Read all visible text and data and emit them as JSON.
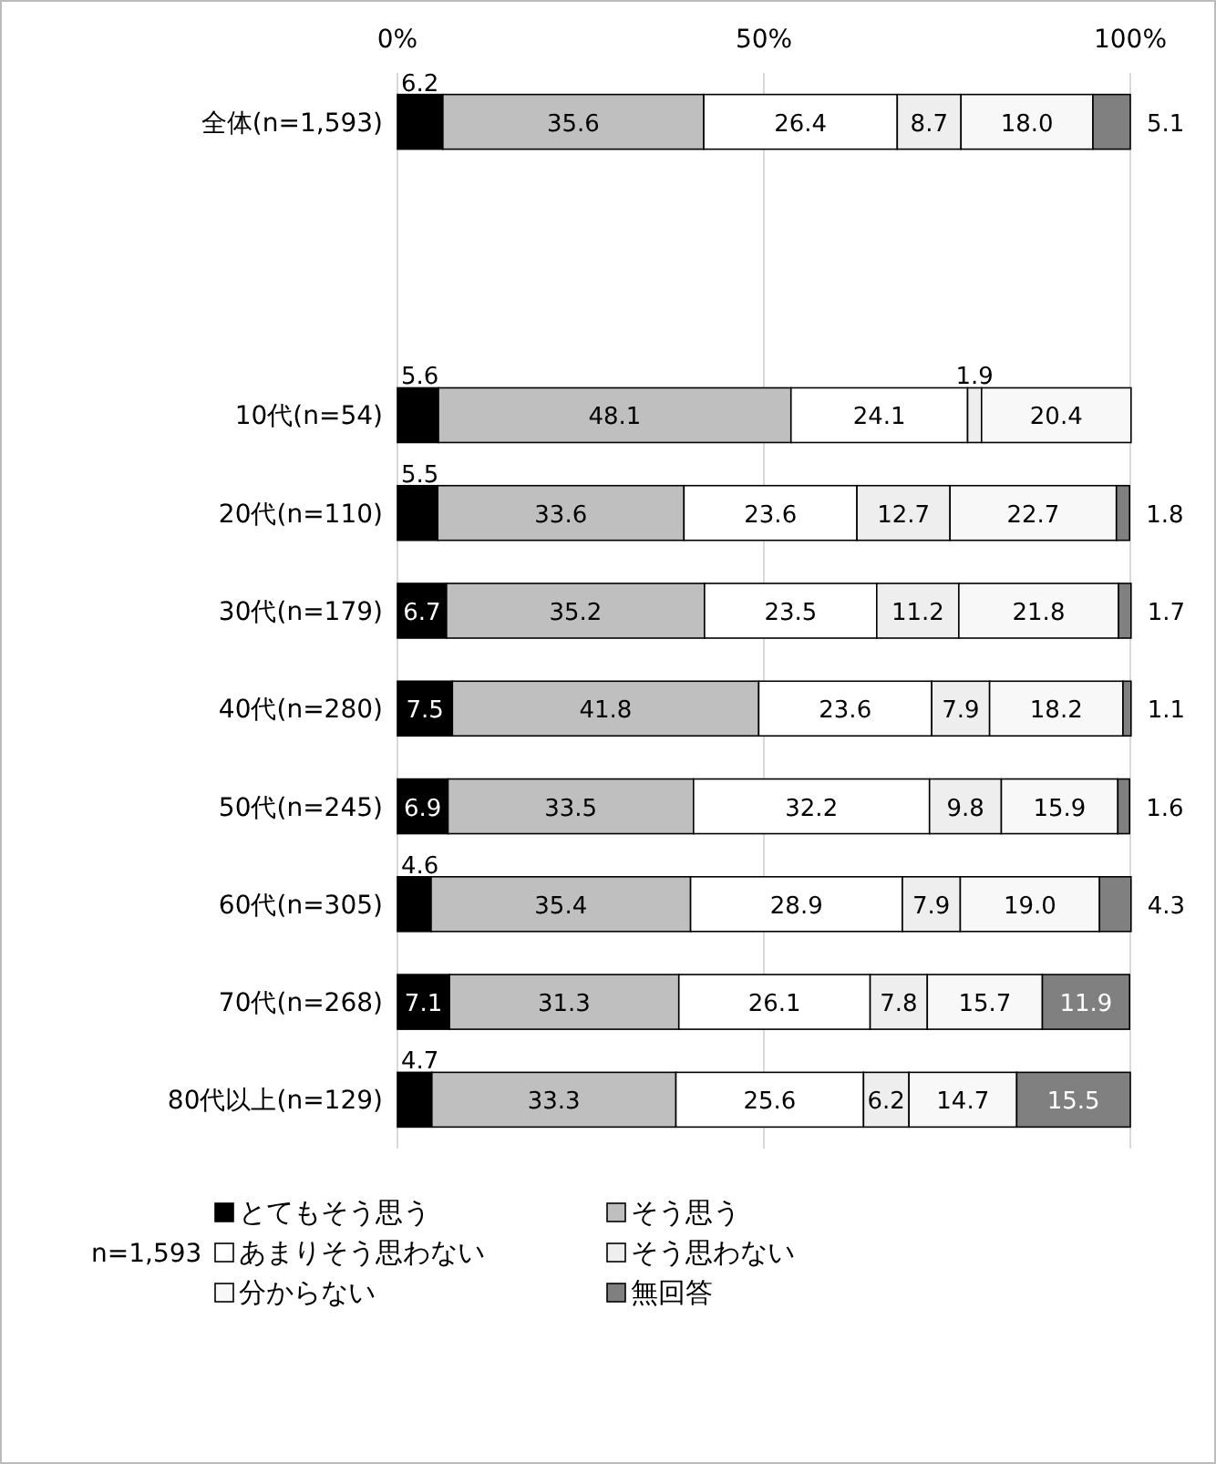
{
  "chart_data": {
    "type": "bar",
    "orientation": "horizontal",
    "stacked": true,
    "grid": "x",
    "legend": "bottom",
    "categories": [
      "全体(n=1,593)",
      null,
      null,
      "10代(n=54)",
      "20代(n=110)",
      "30代(n=179)",
      "40代(n=280)",
      "50代(n=245)",
      "60代(n=305)",
      "70代(n=268)",
      "80代以上(n=129)"
    ],
    "xlim": [
      0,
      100
    ],
    "xticks": [
      {
        "value": 0,
        "label": "0%"
      },
      {
        "value": 50,
        "label": "50%"
      },
      {
        "value": 100,
        "label": "100%"
      }
    ],
    "series": [
      {
        "name": "とてもそう思う",
        "color": "#000000",
        "values": [
          6.2,
          null,
          null,
          5.6,
          5.5,
          6.7,
          7.5,
          6.9,
          4.6,
          7.1,
          4.7
        ],
        "value_labels": [
          "6.2",
          null,
          null,
          "5.6",
          "5.5",
          "6.7",
          "7.5",
          "6.9",
          "4.6",
          "7.1",
          "4.7"
        ]
      },
      {
        "name": "そう思う",
        "color": "#bfbfbf",
        "values": [
          35.6,
          null,
          null,
          48.1,
          33.6,
          35.2,
          41.8,
          33.5,
          35.4,
          31.3,
          33.3
        ],
        "value_labels": [
          "35.6",
          null,
          null,
          "48.1",
          "33.6",
          "35.2",
          "41.8",
          "33.5",
          "35.4",
          "31.3",
          "33.3"
        ]
      },
      {
        "name": "あまりそう思わない",
        "color": "#ffffff",
        "values": [
          26.4,
          null,
          null,
          24.1,
          23.6,
          23.5,
          23.6,
          32.2,
          28.9,
          26.1,
          25.6
        ],
        "value_labels": [
          "26.4",
          null,
          null,
          "24.1",
          "23.6",
          "23.5",
          "23.6",
          "32.2",
          "28.9",
          "26.1",
          "25.6"
        ]
      },
      {
        "name": "そう思わない",
        "color": "#eeeeee",
        "values": [
          8.7,
          null,
          null,
          1.9,
          12.7,
          11.2,
          7.9,
          9.8,
          7.9,
          7.8,
          6.2
        ],
        "value_labels": [
          "8.7",
          null,
          null,
          "1.9",
          "12.7",
          "11.2",
          "7.9",
          "9.8",
          "7.9",
          "7.8",
          "6.2"
        ]
      },
      {
        "name": "分からない",
        "color": "#f8f8f8",
        "values": [
          18.0,
          null,
          null,
          20.4,
          22.7,
          21.8,
          18.2,
          15.9,
          19.0,
          15.7,
          14.7
        ],
        "value_labels": [
          "18.0",
          null,
          null,
          "20.4",
          "22.7",
          "21.8",
          "18.2",
          "15.9",
          "19.0",
          "15.7",
          "14.7"
        ]
      },
      {
        "name": "無回答",
        "color": "#808080",
        "values": [
          5.1,
          null,
          null,
          null,
          1.8,
          1.7,
          1.1,
          1.6,
          4.3,
          11.9,
          15.5
        ],
        "value_labels": [
          "5.1",
          null,
          null,
          null,
          "1.8",
          "1.7",
          "1.1",
          "1.6",
          "4.3",
          "11.9",
          "15.5"
        ]
      }
    ],
    "annotations": [
      "n=1,593"
    ]
  }
}
